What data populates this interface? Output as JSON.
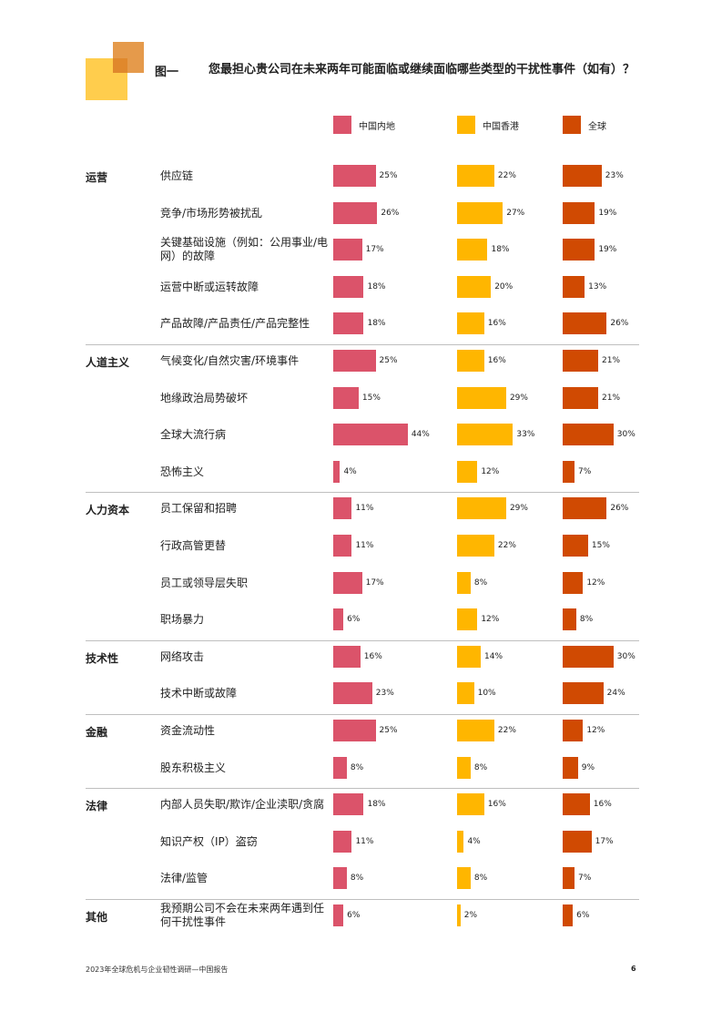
{
  "figure_label": "图一",
  "title": "您最担心贵公司在未来两年可能面临或继续面临哪些类型的干扰性事件（如有）？",
  "footer": {
    "text": "2023年全球危机与企业韧性调研—中国报告",
    "page": "6"
  },
  "colors": {
    "mainland": "#db536a",
    "hongkong": "#ffb600",
    "global": "#d04a02",
    "logo_back": "#ffb600",
    "logo_front": "#ffcd4d",
    "logo_overlap": "#e0882c"
  },
  "chart_data": {
    "type": "bar",
    "orientation": "horizontal",
    "series": [
      {
        "name": "中国内地",
        "color": "#db536a"
      },
      {
        "name": "中国香港",
        "color": "#ffb600"
      },
      {
        "name": "全球",
        "color": "#d04a02"
      }
    ],
    "unit": "%",
    "groups": [
      {
        "name": "运营",
        "items": [
          {
            "label": "供应链",
            "values": [
              25,
              22,
              23
            ]
          },
          {
            "label": "竞争/市场形势被扰乱",
            "values": [
              26,
              27,
              19
            ]
          },
          {
            "label": "关键基础设施（例如：公用事业/电网）的故障",
            "values": [
              17,
              18,
              19
            ]
          },
          {
            "label": "运营中断或运转故障",
            "values": [
              18,
              20,
              13
            ]
          },
          {
            "label": "产品故障/产品责任/产品完整性",
            "values": [
              18,
              16,
              26
            ]
          }
        ]
      },
      {
        "name": "人道主义",
        "items": [
          {
            "label": "气候变化/自然灾害/环境事件",
            "values": [
              25,
              16,
              21
            ]
          },
          {
            "label": "地缘政治局势破坏",
            "values": [
              15,
              29,
              21
            ]
          },
          {
            "label": "全球大流行病",
            "values": [
              44,
              33,
              30
            ]
          },
          {
            "label": "恐怖主义",
            "values": [
              4,
              12,
              7
            ]
          }
        ]
      },
      {
        "name": "人力资本",
        "items": [
          {
            "label": "员工保留和招聘",
            "values": [
              11,
              29,
              26
            ]
          },
          {
            "label": "行政高管更替",
            "values": [
              11,
              22,
              15
            ]
          },
          {
            "label": "员工或领导层失职",
            "values": [
              17,
              8,
              12
            ]
          },
          {
            "label": "职场暴力",
            "values": [
              6,
              12,
              8
            ]
          }
        ]
      },
      {
        "name": "技术性",
        "items": [
          {
            "label": "网络攻击",
            "values": [
              16,
              14,
              30
            ]
          },
          {
            "label": "技术中断或故障",
            "values": [
              23,
              10,
              24
            ]
          }
        ]
      },
      {
        "name": "金融",
        "items": [
          {
            "label": "资金流动性",
            "values": [
              25,
              22,
              12
            ]
          },
          {
            "label": "股东积极主义",
            "values": [
              8,
              8,
              9
            ]
          }
        ]
      },
      {
        "name": "法律",
        "items": [
          {
            "label": "内部人员失职/欺诈/企业渎职/贪腐",
            "values": [
              18,
              16,
              16
            ]
          },
          {
            "label": "知识产权（IP）盗窃",
            "values": [
              11,
              4,
              17
            ]
          },
          {
            "label": "法律/监管",
            "values": [
              8,
              8,
              7
            ]
          }
        ]
      },
      {
        "name": "其他",
        "items": [
          {
            "label": "我预期公司不会在未来两年遇到任何干扰性事件",
            "values": [
              6,
              2,
              6
            ]
          }
        ]
      }
    ]
  }
}
